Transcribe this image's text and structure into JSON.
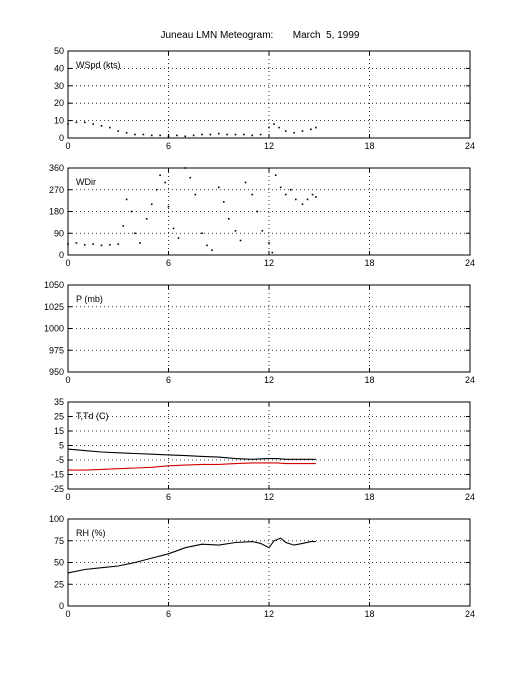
{
  "title": "Juneau LMN Meteogram:       March  5, 1999",
  "colors": {
    "axis": "#000000",
    "grid": "#000000",
    "temperature": "#000000",
    "dewpoint": "#d40000"
  },
  "chart_data": [
    {
      "type": "scatter",
      "label": "WSpd (kts)",
      "xlim": [
        0,
        24
      ],
      "ylim": [
        0,
        50
      ],
      "xticks": [
        "0",
        "6",
        "12",
        "18",
        "24"
      ],
      "yticks": [
        "0",
        "10",
        "20",
        "30",
        "40",
        "50"
      ],
      "grid": true,
      "series": [
        {
          "color": "#000000",
          "points": [
            [
              0,
              8
            ],
            [
              0.5,
              9
            ],
            [
              1,
              9
            ],
            [
              1.5,
              8
            ],
            [
              2,
              7
            ],
            [
              2.5,
              6
            ],
            [
              3,
              4
            ],
            [
              3.5,
              3
            ],
            [
              4,
              2
            ],
            [
              4.5,
              2
            ],
            [
              5,
              1.5
            ],
            [
              5.5,
              1.5
            ],
            [
              6,
              1
            ],
            [
              6.5,
              1.5
            ],
            [
              7,
              1
            ],
            [
              7.5,
              1.5
            ],
            [
              8,
              2
            ],
            [
              8.5,
              2
            ],
            [
              9,
              2.5
            ],
            [
              9.5,
              2
            ],
            [
              10,
              2
            ],
            [
              10.5,
              2
            ],
            [
              11,
              1.5
            ],
            [
              11.5,
              2
            ],
            [
              12,
              6
            ],
            [
              12.3,
              8
            ],
            [
              12.6,
              6
            ],
            [
              13,
              4
            ],
            [
              13.5,
              3
            ],
            [
              14,
              4
            ],
            [
              14.5,
              5
            ],
            [
              14.8,
              6
            ]
          ]
        }
      ]
    },
    {
      "type": "scatter",
      "label": "WDir",
      "xlim": [
        0,
        24
      ],
      "ylim": [
        0,
        360
      ],
      "xticks": [
        "0",
        "6",
        "12",
        "18",
        "24"
      ],
      "yticks": [
        "0",
        "90",
        "180",
        "270",
        "360"
      ],
      "grid": true,
      "series": [
        {
          "color": "#000000",
          "points": [
            [
              0,
              45
            ],
            [
              0.5,
              50
            ],
            [
              1,
              42
            ],
            [
              1.5,
              45
            ],
            [
              2,
              40
            ],
            [
              2.5,
              42
            ],
            [
              3,
              45
            ],
            [
              3.3,
              120
            ],
            [
              3.5,
              230
            ],
            [
              3.8,
              180
            ],
            [
              4,
              90
            ],
            [
              4.3,
              50
            ],
            [
              4.7,
              150
            ],
            [
              5,
              210
            ],
            [
              5.3,
              270
            ],
            [
              5.5,
              330
            ],
            [
              5.8,
              300
            ],
            [
              6,
              200
            ],
            [
              6.3,
              110
            ],
            [
              6.6,
              70
            ],
            [
              7,
              360
            ],
            [
              7.3,
              320
            ],
            [
              7.6,
              250
            ],
            [
              8,
              90
            ],
            [
              8.3,
              40
            ],
            [
              8.6,
              20
            ],
            [
              9,
              280
            ],
            [
              9.3,
              220
            ],
            [
              9.6,
              150
            ],
            [
              10,
              100
            ],
            [
              10.3,
              60
            ],
            [
              10.6,
              300
            ],
            [
              11,
              250
            ],
            [
              11.3,
              180
            ],
            [
              11.6,
              100
            ],
            [
              12,
              50
            ],
            [
              12.2,
              10
            ],
            [
              12.4,
              330
            ],
            [
              12.7,
              280
            ],
            [
              13,
              250
            ],
            [
              13.3,
              270
            ],
            [
              13.6,
              230
            ],
            [
              14,
              210
            ],
            [
              14.3,
              230
            ],
            [
              14.6,
              250
            ],
            [
              14.8,
              240
            ]
          ]
        }
      ]
    },
    {
      "type": "line",
      "label": "P (mb)",
      "xlim": [
        0,
        24
      ],
      "ylim": [
        950,
        1050
      ],
      "xticks": [
        "0",
        "6",
        "12",
        "18",
        "24"
      ],
      "yticks": [
        "950",
        "975",
        "1000",
        "1025",
        "1050"
      ],
      "grid": true,
      "series": []
    },
    {
      "type": "line",
      "label": "T,Td (C)",
      "xlim": [
        0,
        24
      ],
      "ylim": [
        -25,
        35
      ],
      "xticks": [
        "0",
        "6",
        "12",
        "18",
        "24"
      ],
      "yticks": [
        "-25",
        "-15",
        "-5",
        "5",
        "15",
        "25",
        "35"
      ],
      "grid": true,
      "series": [
        {
          "color": "#000000",
          "points": [
            [
              0,
              2.5
            ],
            [
              1,
              1.5
            ],
            [
              2,
              0.5
            ],
            [
              3,
              0
            ],
            [
              4,
              -0.5
            ],
            [
              5,
              -1
            ],
            [
              6,
              -1.5
            ],
            [
              7,
              -2
            ],
            [
              8,
              -2.5
            ],
            [
              9,
              -3
            ],
            [
              10,
              -4
            ],
            [
              11,
              -4.5
            ],
            [
              12,
              -4
            ],
            [
              12.5,
              -4
            ],
            [
              13,
              -4.5
            ],
            [
              14,
              -4.5
            ],
            [
              14.8,
              -4.5
            ]
          ]
        },
        {
          "color": "#d40000",
          "points": [
            [
              0,
              -12
            ],
            [
              1,
              -12
            ],
            [
              2,
              -11.5
            ],
            [
              3,
              -11
            ],
            [
              4,
              -10.5
            ],
            [
              5,
              -10
            ],
            [
              6,
              -9
            ],
            [
              7,
              -8.5
            ],
            [
              8,
              -8
            ],
            [
              9,
              -8
            ],
            [
              10,
              -7.5
            ],
            [
              11,
              -7
            ],
            [
              12,
              -7
            ],
            [
              12.5,
              -7
            ],
            [
              13,
              -7.5
            ],
            [
              14,
              -7.5
            ],
            [
              14.8,
              -7.5
            ]
          ]
        }
      ]
    },
    {
      "type": "line",
      "label": "RH (%)",
      "xlim": [
        0,
        24
      ],
      "ylim": [
        0,
        100
      ],
      "xticks": [
        "0",
        "6",
        "12",
        "18",
        "24"
      ],
      "yticks": [
        "0",
        "25",
        "50",
        "75",
        "100"
      ],
      "grid": true,
      "series": [
        {
          "color": "#000000",
          "points": [
            [
              0,
              38
            ],
            [
              1,
              42
            ],
            [
              2,
              44
            ],
            [
              3,
              46
            ],
            [
              4,
              50
            ],
            [
              5,
              55
            ],
            [
              6,
              60
            ],
            [
              7,
              67
            ],
            [
              8,
              71
            ],
            [
              9,
              70
            ],
            [
              10,
              73
            ],
            [
              11,
              74
            ],
            [
              11.5,
              72
            ],
            [
              12,
              67
            ],
            [
              12.3,
              75
            ],
            [
              12.7,
              78
            ],
            [
              13,
              73
            ],
            [
              13.5,
              70
            ],
            [
              14,
              72
            ],
            [
              14.5,
              74
            ],
            [
              14.8,
              74
            ]
          ]
        }
      ]
    }
  ]
}
